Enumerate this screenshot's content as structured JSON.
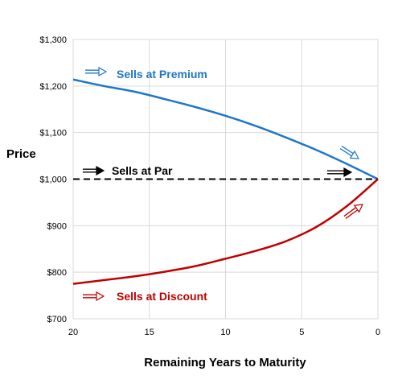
{
  "chart_data": {
    "type": "line",
    "title": "",
    "xlabel": "Remaining Years to Maturity",
    "ylabel": "Price",
    "x_reversed": true,
    "xlim": [
      20,
      0
    ],
    "ylim": [
      700,
      1300
    ],
    "grid": true,
    "x_ticks": [
      {
        "value": 20,
        "label": "20"
      },
      {
        "value": 15,
        "label": "15"
      },
      {
        "value": 10,
        "label": "10"
      },
      {
        "value": 5,
        "label": "5"
      },
      {
        "value": 0,
        "label": "0"
      }
    ],
    "y_ticks": [
      {
        "value": 700,
        "label": "$700"
      },
      {
        "value": 800,
        "label": "$800"
      },
      {
        "value": 900,
        "label": "$900"
      },
      {
        "value": 1000,
        "label": "$1,000"
      },
      {
        "value": 1100,
        "label": "$1,100"
      },
      {
        "value": 1200,
        "label": "$1,200"
      },
      {
        "value": 1300,
        "label": "$1,300"
      }
    ],
    "series": [
      {
        "name": "Sells at Premium",
        "color": "#1f77c8",
        "style": "solid",
        "x": [
          20,
          18,
          16,
          14,
          12,
          10,
          8,
          6,
          4,
          2,
          0
        ],
        "y": [
          1214,
          1200,
          1188,
          1172,
          1155,
          1136,
          1114,
          1089,
          1062,
          1032,
          1000
        ]
      },
      {
        "name": "Sells at Par",
        "color": "#000000",
        "style": "dashed",
        "x": [
          20,
          0
        ],
        "y": [
          1000,
          1000
        ]
      },
      {
        "name": "Sells at Discount",
        "color": "#c00000",
        "style": "solid",
        "x": [
          20,
          18,
          16,
          14,
          12,
          10,
          8,
          6,
          4,
          2,
          0
        ],
        "y": [
          775,
          783,
          791,
          801,
          813,
          829,
          846,
          867,
          898,
          943,
          1000
        ]
      }
    ],
    "annotations": [
      {
        "text": "Sells at Premium",
        "color": "#1f77c8"
      },
      {
        "text": "Sells at Par",
        "color": "#000000"
      },
      {
        "text": "Sells at Discount",
        "color": "#c00000"
      }
    ]
  }
}
